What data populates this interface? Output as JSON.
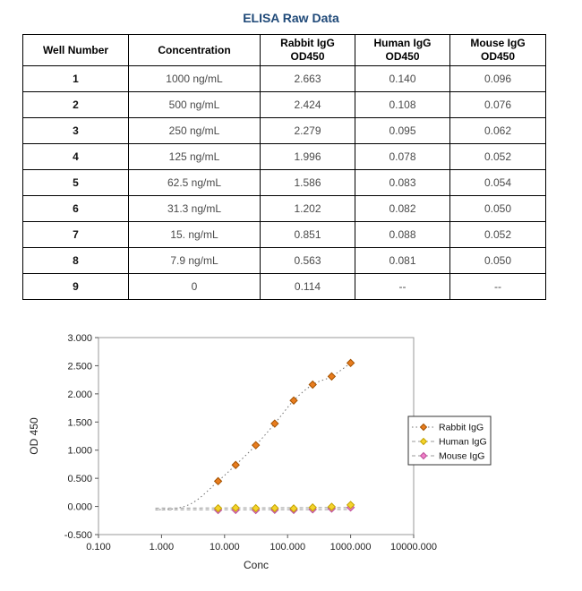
{
  "page": {
    "title": "ELISA Raw Data",
    "title_color": "#1F4978"
  },
  "table": {
    "columns": [
      [
        "Well Number"
      ],
      [
        "Concentration"
      ],
      [
        "Rabbit IgG",
        "OD450"
      ],
      [
        "Human IgG",
        "OD450"
      ],
      [
        "Mouse IgG",
        "OD450"
      ]
    ],
    "rows": [
      [
        "1",
        "1000 ng/mL",
        "2.663",
        "0.140",
        "0.096"
      ],
      [
        "2",
        "500 ng/mL",
        "2.424",
        "0.108",
        "0.076"
      ],
      [
        "3",
        "250 ng/mL",
        "2.279",
        "0.095",
        "0.062"
      ],
      [
        "4",
        "125 ng/mL",
        "1.996",
        "0.078",
        "0.052"
      ],
      [
        "5",
        "62.5 ng/mL",
        "1.586",
        "0.083",
        "0.054"
      ],
      [
        "6",
        "31.3 ng/mL",
        "1.202",
        "0.082",
        "0.050"
      ],
      [
        "7",
        "15. ng/mL",
        "0.851",
        "0.088",
        "0.052"
      ],
      [
        "8",
        "7.9 ng/mL",
        "0.563",
        "0.081",
        "0.050"
      ],
      [
        "9",
        "0",
        "0.114",
        "--",
        "--"
      ]
    ]
  },
  "chart_data": {
    "type": "scatter",
    "title": "",
    "xlabel": "Conc",
    "ylabel": "OD 450",
    "x_scale": "log",
    "xlim": [
      0.1,
      10000
    ],
    "ylim": [
      -0.5,
      3.0
    ],
    "grid": false,
    "legend_position": "right",
    "x_tick_values": [
      0.1,
      1,
      10,
      100,
      1000,
      10000
    ],
    "x_tick_labels": [
      "0.100",
      "1.000",
      "10.000",
      "100.000",
      "1000.000",
      "10000.000"
    ],
    "y_tick_values": [
      -0.5,
      0,
      0.5,
      1,
      1.5,
      2,
      2.5,
      3
    ],
    "y_tick_labels": [
      "-0.500",
      "0.000",
      "0.500",
      "1.000",
      "1.500",
      "2.000",
      "2.500",
      "3.000"
    ],
    "series": [
      {
        "name": "Rabbit IgG",
        "marker": "diamond",
        "color": "#E87C1E",
        "edge_color": "#A35200",
        "line_color": "#707070",
        "line_style": "dotted",
        "x": [
          7.9,
          15,
          31.3,
          62.5,
          125,
          250,
          500,
          1000
        ],
        "y": [
          0.449,
          0.737,
          1.088,
          1.472,
          1.882,
          2.165,
          2.31,
          2.549
        ],
        "line_x": [
          0.8,
          1.8,
          3.5,
          7.9,
          15,
          31.3,
          62.5,
          125,
          250,
          500,
          1000
        ],
        "line_y": [
          -0.06,
          -0.03,
          0.1,
          0.449,
          0.737,
          1.088,
          1.472,
          1.882,
          2.165,
          2.31,
          2.549
        ]
      },
      {
        "name": "Human IgG",
        "marker": "diamond",
        "color": "#F5D32C",
        "edge_color": "#C2A300",
        "line_color": "#999999",
        "line_style": "dashed",
        "x": [
          7.9,
          15,
          31.3,
          62.5,
          125,
          250,
          500,
          1000
        ],
        "y": [
          -0.033,
          -0.026,
          -0.032,
          -0.031,
          -0.036,
          -0.019,
          -0.006,
          0.026
        ],
        "line_x": [
          0.8,
          1000
        ],
        "line_y": [
          -0.03,
          -0.02
        ]
      },
      {
        "name": "Mouse IgG",
        "marker": "diamond",
        "color": "#F07EC8",
        "edge_color": "#BA4E97",
        "line_color": "#999999",
        "line_style": "dashed",
        "x": [
          7.9,
          15,
          31.3,
          62.5,
          125,
          250,
          500,
          1000
        ],
        "y": [
          -0.064,
          -0.062,
          -0.064,
          -0.06,
          -0.062,
          -0.052,
          -0.038,
          -0.018
        ],
        "line_x": [
          0.8,
          1000
        ],
        "line_y": [
          -0.06,
          -0.055
        ]
      }
    ]
  }
}
